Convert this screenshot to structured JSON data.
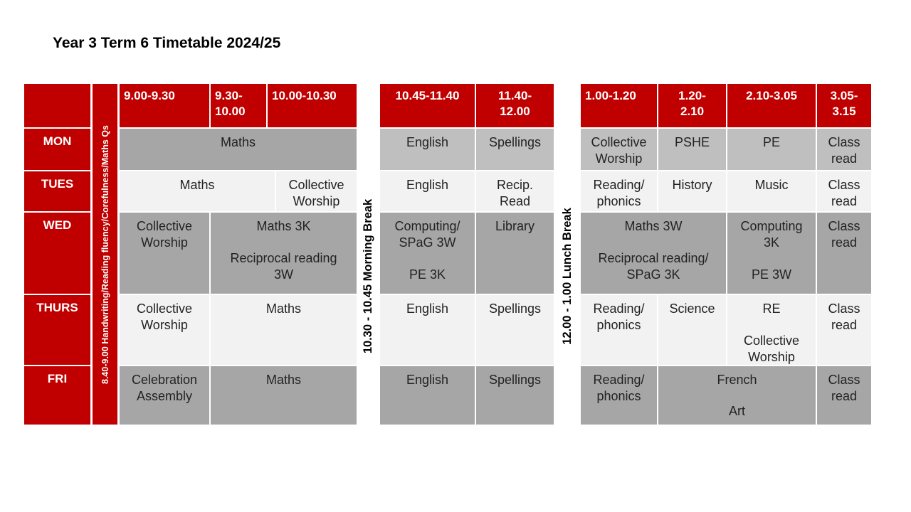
{
  "title": "Year 3 Term 6 Timetable 2024/25",
  "vertical_labels": {
    "morning_routine": "8.40-9.00 Handwriting/Reading fluency/Corefulness/Maths Qs",
    "morning_break": "10.30 - 10.45 Morning Break",
    "lunch_break": "12.00 - 1.00 Lunch Break"
  },
  "headers": {
    "h1": "9.00-9.30",
    "h2": [
      "9.30-",
      "10.00"
    ],
    "h3": "10.00-10.30",
    "h4": "10.45-11.40",
    "h5": [
      "11.40-",
      "12.00"
    ],
    "h6": "1.00-1.20",
    "h7": [
      "1.20-",
      "2.10"
    ],
    "h8": "2.10-3.05",
    "h9": [
      "3.05-",
      "3.15"
    ]
  },
  "days": [
    "MON",
    "TUES",
    "WED",
    "THURS",
    "FRI"
  ],
  "mon": {
    "maths": "Maths",
    "english": "English",
    "spellings": "Spellings",
    "worship": [
      "Collective",
      "Worship"
    ],
    "pshe": "PSHE",
    "pe": "PE",
    "read": [
      "Class",
      "read"
    ]
  },
  "tue": {
    "maths": "Maths",
    "worship": [
      "Collective",
      "Worship"
    ],
    "english": "English",
    "recip": [
      "Recip.",
      "Read"
    ],
    "reading": [
      "Reading/",
      "phonics"
    ],
    "history": "History",
    "music": "Music",
    "read": [
      "Class",
      "read"
    ]
  },
  "wed": {
    "worship": [
      "Collective",
      "Worship"
    ],
    "maths": [
      "Maths 3K",
      "",
      "Reciprocal reading",
      "3W"
    ],
    "computing": [
      "Computing/",
      "SPaG 3W",
      "",
      "PE 3K"
    ],
    "library": "Library",
    "pm": [
      "Maths 3W",
      "",
      "Reciprocal reading/",
      "SPaG 3K"
    ],
    "computing2": [
      "Computing",
      "3K",
      "",
      "PE 3W"
    ],
    "read": [
      "Class",
      "read"
    ]
  },
  "thu": {
    "worship": [
      "Collective",
      "Worship"
    ],
    "maths": "Maths",
    "english": "English",
    "spellings": "Spellings",
    "reading": [
      "Reading/",
      "phonics"
    ],
    "science": "Science",
    "re": [
      "RE",
      "",
      "Collective",
      "Worship"
    ],
    "read": [
      "Class",
      "read"
    ]
  },
  "fri": {
    "celebration": [
      "Celebration",
      "Assembly"
    ],
    "maths": "Maths",
    "english": "English",
    "spellings": "Spellings",
    "reading": [
      "Reading/",
      "phonics"
    ],
    "french": [
      "French",
      "",
      "Art"
    ],
    "read": [
      "Class",
      "read"
    ]
  },
  "colors": {
    "header_red": "#c00000",
    "dark_cell": "#a6a6a6",
    "light_cell": "#f2f2f2"
  }
}
